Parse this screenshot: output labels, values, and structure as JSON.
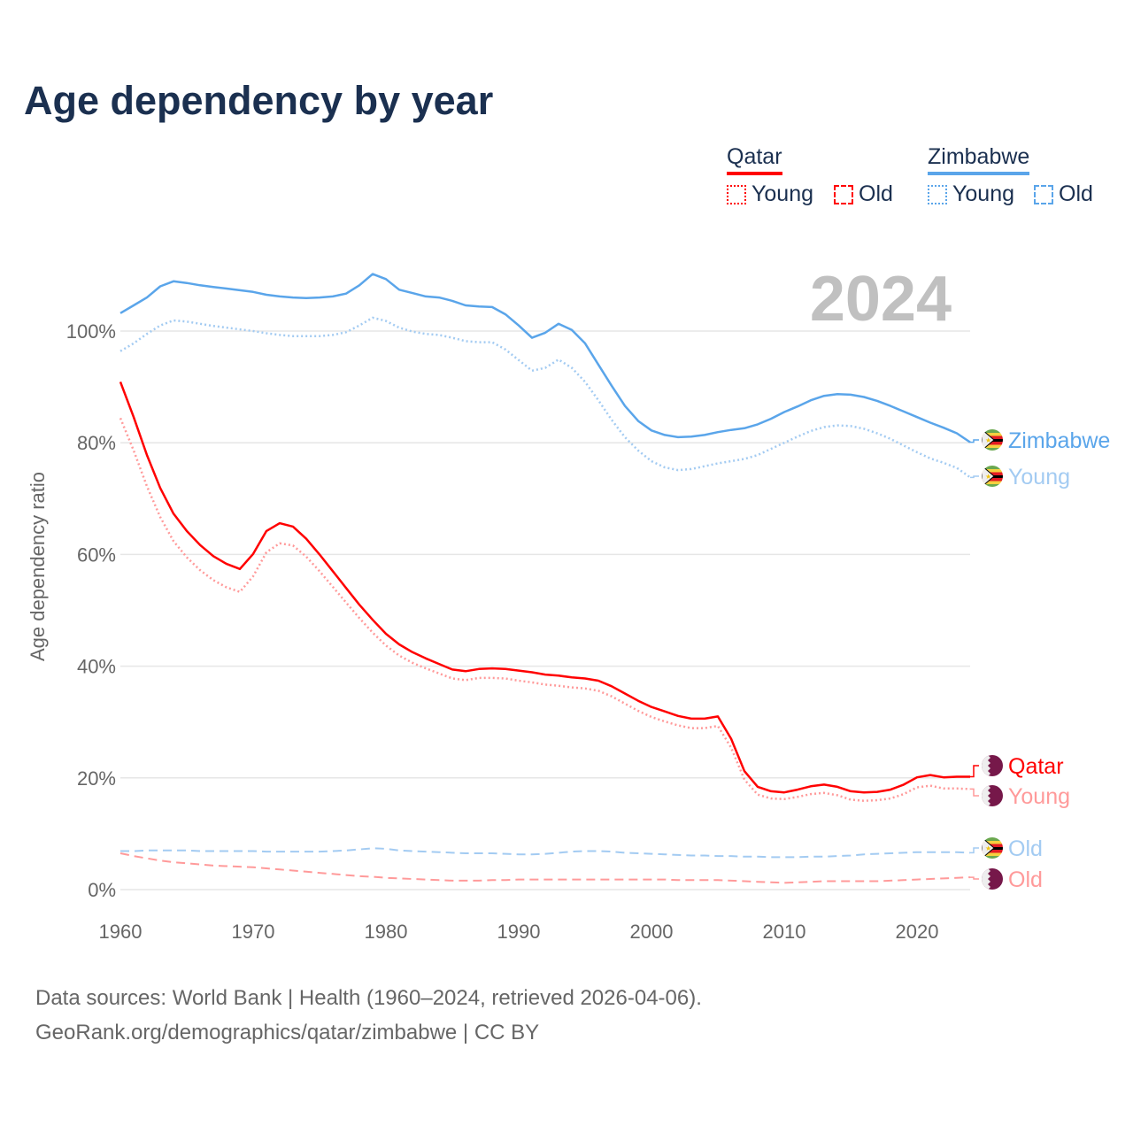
{
  "chart_data": {
    "type": "line",
    "title": "Age dependency by year",
    "ylabel": "Age dependency ratio",
    "xlabel": "",
    "year_watermark": "2024",
    "ylim": [
      0,
      112
    ],
    "xlim": [
      1960,
      2024
    ],
    "yticks": [
      0,
      20,
      40,
      60,
      80,
      100
    ],
    "ytick_labels": [
      "0%",
      "20%",
      "40%",
      "60%",
      "80%",
      "100%"
    ],
    "xticks": [
      1960,
      1970,
      1980,
      1990,
      2000,
      2010,
      2020
    ],
    "xtick_labels": [
      "1960",
      "1970",
      "1980",
      "1990",
      "2000",
      "2010",
      "2020"
    ],
    "grid": true,
    "legend": {
      "placement": "top-right",
      "groups": [
        {
          "country": "Qatar",
          "items": [
            "Young",
            "Old"
          ]
        },
        {
          "country": "Zimbabwe",
          "items": [
            "Young",
            "Old"
          ]
        }
      ]
    },
    "x_start": 1960,
    "series": [
      {
        "name": "Zimbabwe",
        "country": "Zimbabwe",
        "kind": "total",
        "end_label": "Zimbabwe",
        "color": "#5aa5ea",
        "values": [
          103.2,
          104.6,
          106,
          108,
          108.9,
          108.6,
          108.2,
          107.9,
          107.6,
          107.3,
          107,
          106.5,
          106.2,
          106,
          105.9,
          106,
          106.2,
          106.7,
          108.2,
          110.2,
          109.3,
          107.4,
          106.8,
          106.2,
          106,
          105.4,
          104.6,
          104.4,
          104.3,
          103,
          101,
          98.8,
          99.7,
          101.3,
          100.2,
          97.8,
          94,
          90.2,
          86.6,
          83.9,
          82.2,
          81.4,
          81,
          81.1,
          81.4,
          81.9,
          82.3,
          82.6,
          83.3,
          84.3,
          85.5,
          86.5,
          87.6,
          88.4,
          88.7,
          88.6,
          88.2,
          87.5,
          86.6,
          85.6,
          84.6,
          83.6,
          82.7,
          81.7,
          80.1
        ]
      },
      {
        "name": "Zimbabwe Young",
        "country": "Zimbabwe",
        "kind": "young",
        "end_label": "Young",
        "color": "#a3cbf2",
        "values": [
          96.4,
          97.8,
          99.5,
          101,
          101.9,
          101.7,
          101.3,
          100.9,
          100.6,
          100.3,
          100,
          99.6,
          99.3,
          99.1,
          99.1,
          99.1,
          99.3,
          99.8,
          101,
          102.4,
          101.8,
          100.6,
          99.9,
          99.5,
          99.3,
          98.8,
          98.2,
          98,
          98,
          96.7,
          94.8,
          92.9,
          93.4,
          94.9,
          93.4,
          90.9,
          87.6,
          84.1,
          81,
          78.6,
          76.7,
          75.6,
          75.1,
          75.3,
          75.8,
          76.3,
          76.7,
          77.1,
          77.8,
          78.9,
          80,
          81.1,
          82.1,
          82.8,
          83.1,
          83,
          82.5,
          81.7,
          80.7,
          79.5,
          78.3,
          77.2,
          76.4,
          75.5,
          73.8
        ]
      },
      {
        "name": "Qatar",
        "country": "Qatar",
        "kind": "total",
        "end_label": "Qatar",
        "color": "#ff0000",
        "values": [
          90.9,
          84.6,
          77.8,
          71.9,
          67.3,
          64.2,
          61.7,
          59.7,
          58.3,
          57.4,
          60.1,
          64.2,
          65.6,
          65,
          62.8,
          60,
          57,
          54,
          51,
          48.3,
          45.8,
          43.9,
          42.5,
          41.4,
          40.4,
          39.4,
          39.1,
          39.5,
          39.6,
          39.5,
          39.2,
          38.9,
          38.5,
          38.3,
          38,
          37.8,
          37.4,
          36.4,
          35.1,
          33.8,
          32.7,
          31.9,
          31.1,
          30.6,
          30.6,
          31,
          27,
          21.2,
          18.4,
          17.6,
          17.4,
          17.9,
          18.5,
          18.8,
          18.4,
          17.6,
          17.4,
          17.5,
          17.9,
          18.8,
          20.1,
          20.5,
          20.1,
          20.2,
          20.2
        ]
      },
      {
        "name": "Qatar Young",
        "country": "Qatar",
        "kind": "young",
        "end_label": "Young",
        "color": "#ff9a9a",
        "values": [
          84.4,
          78.6,
          72.2,
          66.7,
          62.4,
          59.5,
          57.2,
          55.4,
          54.1,
          53.3,
          56.1,
          60.4,
          62,
          61.6,
          59.6,
          57,
          54.2,
          51.4,
          48.6,
          46,
          43.7,
          41.9,
          40.6,
          39.6,
          38.7,
          37.8,
          37.5,
          37.9,
          37.9,
          37.8,
          37.4,
          37.1,
          36.7,
          36.5,
          36.2,
          36,
          35.6,
          34.6,
          33.3,
          32,
          30.9,
          30.1,
          29.4,
          28.9,
          28.9,
          29.3,
          25.4,
          19.7,
          17,
          16.3,
          16.2,
          16.6,
          17.1,
          17.3,
          16.9,
          16.1,
          15.9,
          16,
          16.3,
          17.1,
          18.3,
          18.6,
          18.1,
          18.1,
          18
        ]
      },
      {
        "name": "Zimbabwe Old",
        "country": "Zimbabwe",
        "kind": "old",
        "end_label": "Old",
        "color": "#a3cbf2",
        "values": [
          6.9,
          6.9,
          7,
          7,
          7,
          7,
          6.9,
          6.9,
          6.9,
          6.9,
          6.9,
          6.8,
          6.8,
          6.8,
          6.8,
          6.8,
          6.9,
          7,
          7.2,
          7.4,
          7.3,
          7,
          6.9,
          6.8,
          6.7,
          6.6,
          6.5,
          6.5,
          6.5,
          6.4,
          6.3,
          6.3,
          6.4,
          6.6,
          6.8,
          6.9,
          6.9,
          6.8,
          6.6,
          6.5,
          6.4,
          6.3,
          6.2,
          6.1,
          6.1,
          6,
          6,
          5.9,
          5.9,
          5.8,
          5.8,
          5.8,
          5.9,
          5.9,
          6,
          6.1,
          6.3,
          6.4,
          6.5,
          6.6,
          6.7,
          6.7,
          6.7,
          6.7,
          6.6
        ]
      },
      {
        "name": "Qatar Old",
        "country": "Qatar",
        "kind": "old",
        "end_label": "Old",
        "color": "#ff9a9a",
        "values": [
          6.5,
          6,
          5.6,
          5.2,
          4.9,
          4.7,
          4.5,
          4.3,
          4.2,
          4.1,
          4,
          3.8,
          3.6,
          3.4,
          3.2,
          3,
          2.8,
          2.6,
          2.4,
          2.3,
          2.1,
          2,
          1.9,
          1.8,
          1.7,
          1.6,
          1.6,
          1.6,
          1.7,
          1.7,
          1.8,
          1.8,
          1.8,
          1.8,
          1.8,
          1.8,
          1.8,
          1.8,
          1.8,
          1.8,
          1.8,
          1.8,
          1.7,
          1.7,
          1.7,
          1.7,
          1.6,
          1.5,
          1.4,
          1.3,
          1.2,
          1.3,
          1.4,
          1.5,
          1.5,
          1.5,
          1.5,
          1.5,
          1.6,
          1.7,
          1.8,
          1.9,
          2,
          2.1,
          2.2
        ]
      }
    ]
  },
  "footer": {
    "line1": "Data sources: World Bank | Health (1960–2024, retrieved 2026-04-06).",
    "line2": "GeoRank.org/demographics/qatar/zimbabwe | CC BY"
  }
}
